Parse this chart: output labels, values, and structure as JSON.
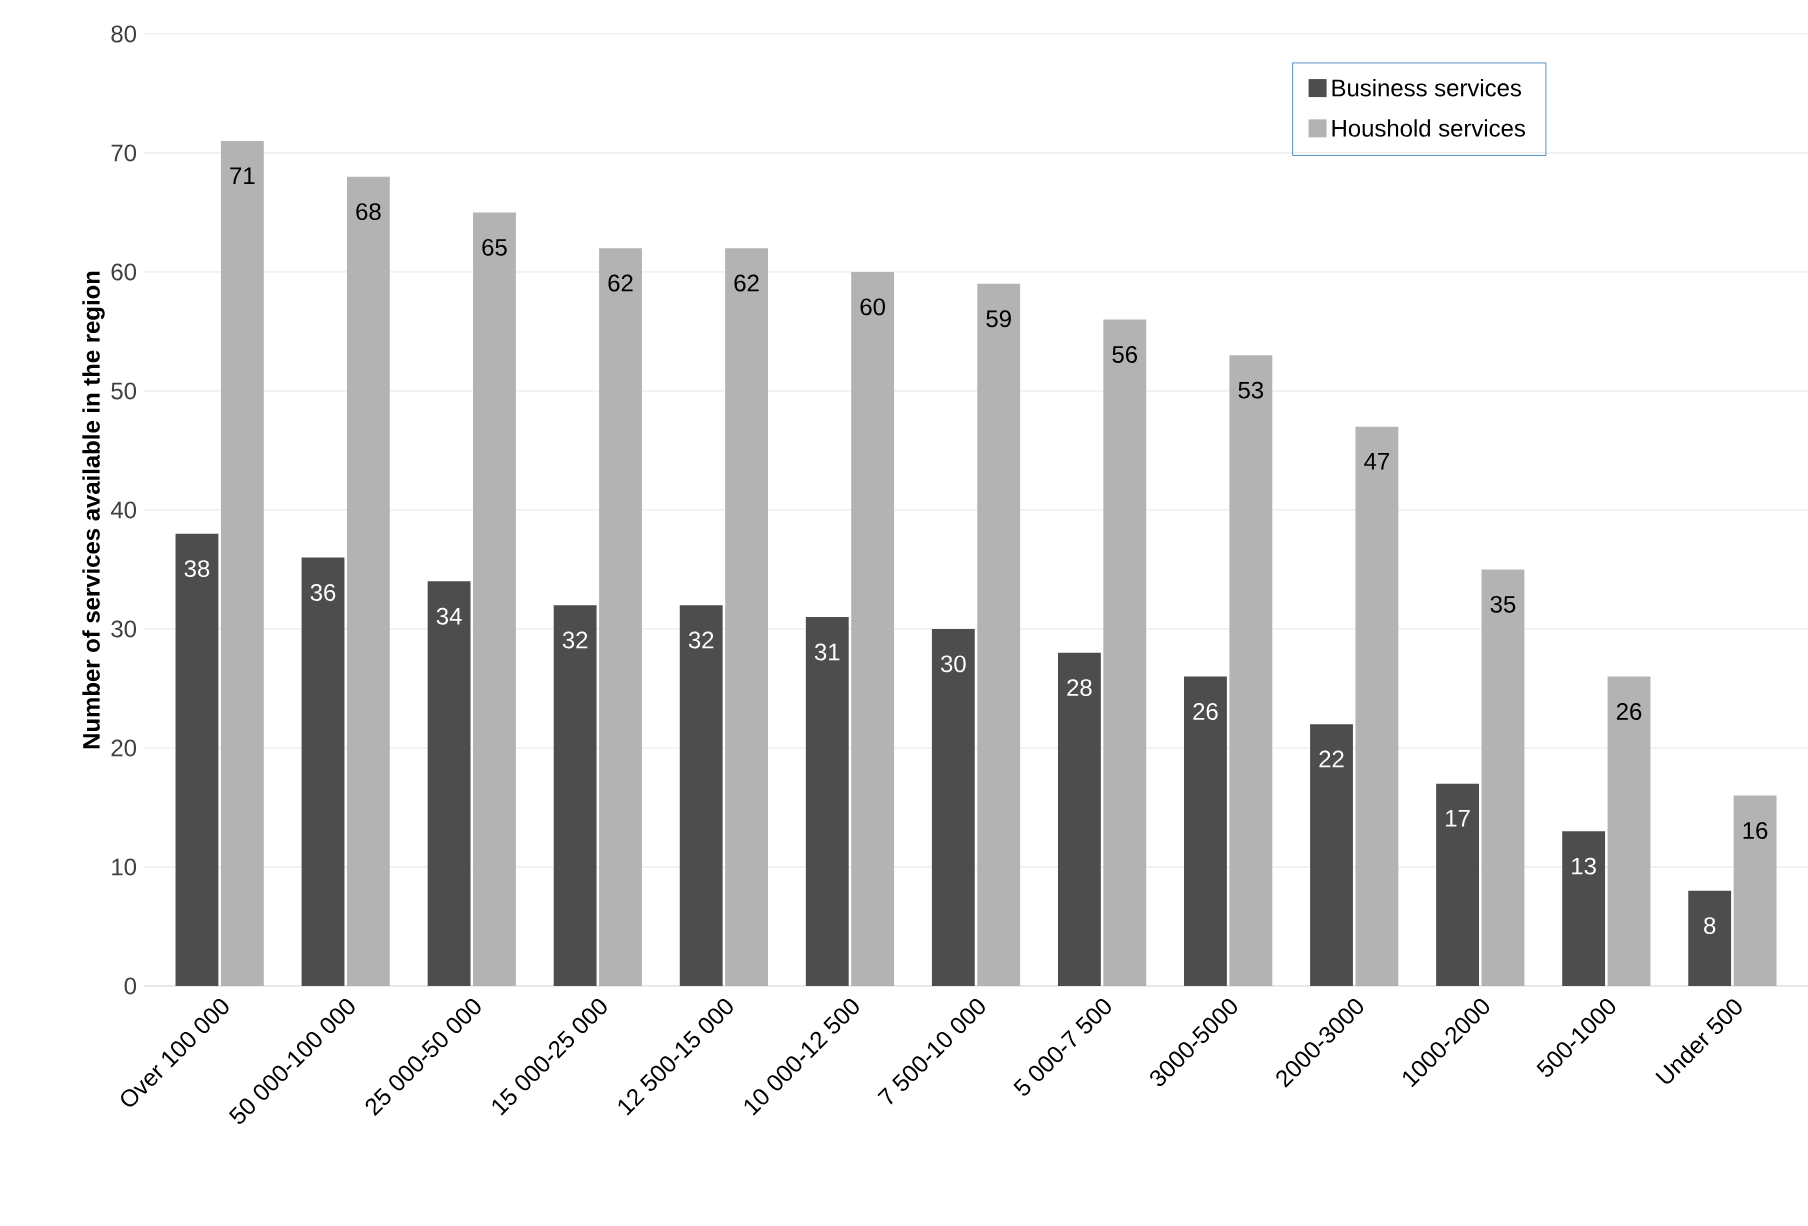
{
  "chart_data": {
    "type": "bar",
    "ylabel": "Number of services available in the region",
    "categories": [
      "Over 100 000",
      "50 000-100 000",
      "25 000-50 000",
      "15 000-25 000",
      "12 500-15 000",
      "10 000-12 500",
      "7 500-10 000",
      "5 000-7 500",
      "3000-5000",
      "2000-3000",
      "1000-2000",
      "500-1000",
      "Under 500"
    ],
    "series": [
      {
        "name": "Business services",
        "color": "#4d4d4d",
        "values": [
          38,
          36,
          34,
          32,
          32,
          31,
          30,
          28,
          26,
          22,
          17,
          13,
          8
        ]
      },
      {
        "name": "Houshold services",
        "color": "#b3b3b3",
        "values": [
          71,
          68,
          65,
          62,
          62,
          60,
          59,
          56,
          53,
          47,
          35,
          26,
          16
        ]
      }
    ],
    "ylim": [
      0,
      80
    ],
    "yticks": [
      0,
      10,
      20,
      30,
      40,
      50,
      60,
      70,
      80
    ],
    "grid": "y",
    "legend": "top right",
    "data_labels": true
  }
}
